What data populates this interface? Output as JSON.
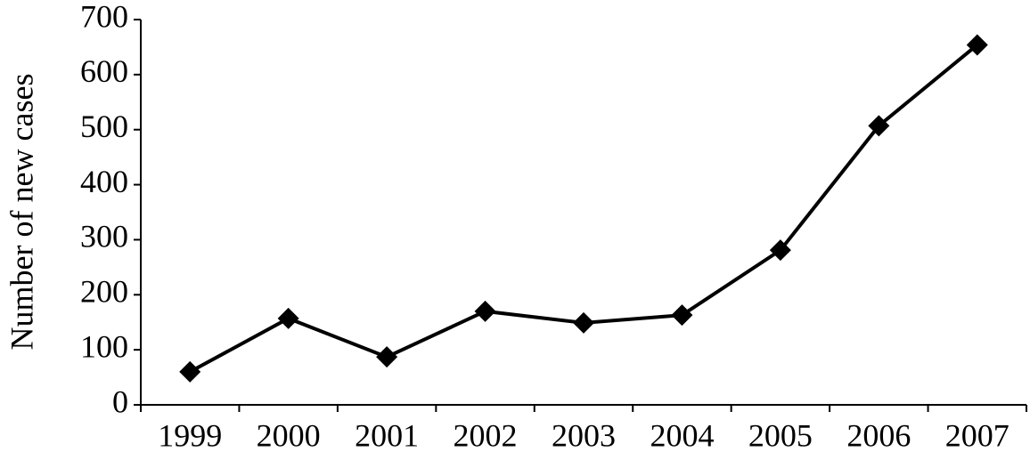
{
  "chart_data": {
    "type": "line",
    "y_label": "Number of new cases",
    "categories": [
      "1999",
      "2000",
      "2001",
      "2002",
      "2003",
      "2004",
      "2005",
      "2006",
      "2007"
    ],
    "values": [
      60,
      157,
      87,
      170,
      149,
      163,
      281,
      507,
      654
    ],
    "color": "#000000",
    "marker": "diamond",
    "ylim": [
      0,
      700
    ],
    "yticks": [
      0,
      100,
      200,
      300,
      400,
      500,
      600,
      700
    ],
    "grid": false
  }
}
